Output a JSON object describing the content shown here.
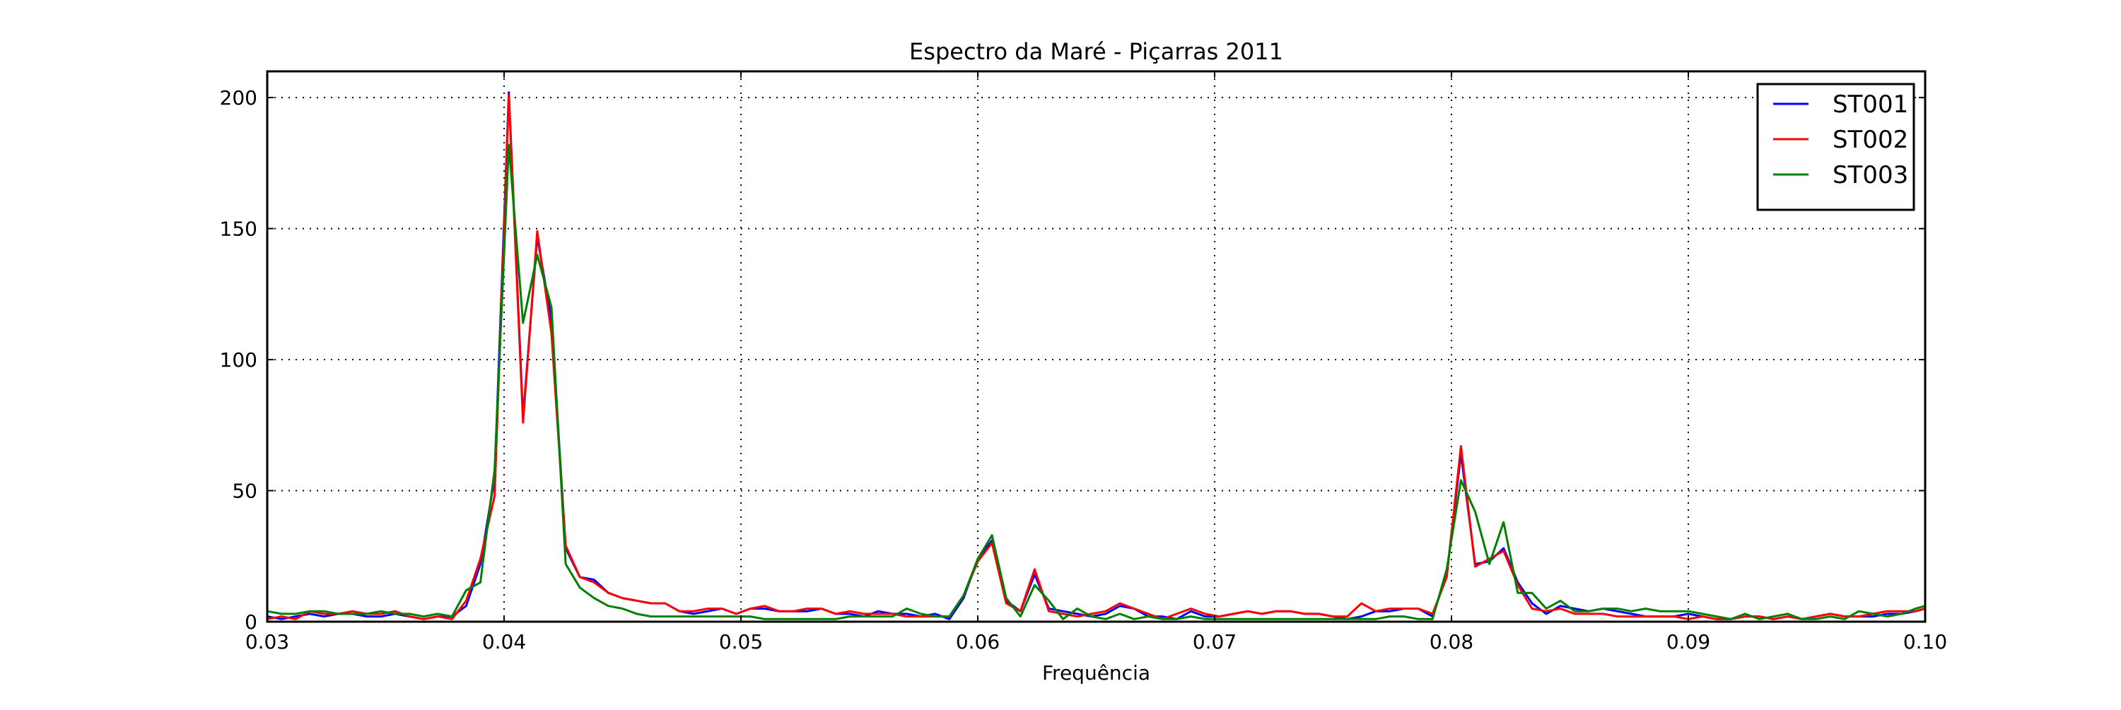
{
  "chart_data": {
    "type": "line",
    "title": "Espectro da Maré - Piçarras 2011",
    "xlabel": "Frequência",
    "ylabel": "",
    "xlim": [
      0.03,
      0.1
    ],
    "ylim": [
      0,
      210
    ],
    "xticks": [
      0.03,
      0.04,
      0.05,
      0.06,
      0.07,
      0.08,
      0.09,
      0.1
    ],
    "xtick_labels": [
      "0.03",
      "0.04",
      "0.05",
      "0.06",
      "0.07",
      "0.08",
      "0.09",
      "0.10"
    ],
    "yticks": [
      0,
      50,
      100,
      150,
      200
    ],
    "ytick_labels": [
      "0",
      "50",
      "100",
      "150",
      "200"
    ],
    "grid": true,
    "legend_position": "top-right",
    "x": [
      0.03,
      0.0306,
      0.0312,
      0.0318,
      0.0324,
      0.033,
      0.0336,
      0.0342,
      0.0348,
      0.0354,
      0.036,
      0.0366,
      0.0372,
      0.0378,
      0.0384,
      0.039,
      0.0396,
      0.0402,
      0.0408,
      0.0414,
      0.042,
      0.0426,
      0.0432,
      0.0438,
      0.0444,
      0.045,
      0.0456,
      0.0462,
      0.0468,
      0.0474,
      0.048,
      0.0486,
      0.0492,
      0.0498,
      0.0504,
      0.051,
      0.0516,
      0.0522,
      0.0528,
      0.0534,
      0.054,
      0.0546,
      0.0552,
      0.0558,
      0.0564,
      0.057,
      0.0576,
      0.0582,
      0.0588,
      0.0594,
      0.06,
      0.0606,
      0.0612,
      0.0618,
      0.0624,
      0.063,
      0.0636,
      0.0642,
      0.0648,
      0.0654,
      0.066,
      0.0666,
      0.0672,
      0.0678,
      0.0684,
      0.069,
      0.0696,
      0.0702,
      0.0708,
      0.0714,
      0.072,
      0.0726,
      0.0732,
      0.0738,
      0.0744,
      0.075,
      0.0756,
      0.0762,
      0.0768,
      0.0774,
      0.078,
      0.0786,
      0.0792,
      0.0798,
      0.0804,
      0.081,
      0.0816,
      0.0822,
      0.0828,
      0.0834,
      0.084,
      0.0846,
      0.0852,
      0.0858,
      0.0864,
      0.087,
      0.0876,
      0.0882,
      0.0888,
      0.0894,
      0.09,
      0.0906,
      0.0912,
      0.0918,
      0.0924,
      0.093,
      0.0936,
      0.0942,
      0.0948,
      0.0954,
      0.096,
      0.0966,
      0.0972,
      0.0978,
      0.0984,
      0.099,
      0.0996,
      0.1
    ],
    "series": [
      {
        "name": "ST001",
        "color": "#0000ff",
        "values": [
          2,
          1,
          2,
          3,
          2,
          3,
          3,
          2,
          2,
          3,
          2,
          1,
          2,
          2,
          6,
          22,
          55,
          202,
          78,
          147,
          115,
          28,
          17,
          16,
          11,
          9,
          8,
          7,
          7,
          4,
          3,
          4,
          5,
          3,
          5,
          5,
          4,
          4,
          4,
          5,
          3,
          3,
          2,
          4,
          3,
          3,
          2,
          3,
          1,
          9,
          24,
          31,
          8,
          4,
          18,
          5,
          4,
          3,
          2,
          3,
          6,
          5,
          2,
          2,
          1,
          4,
          2,
          2,
          3,
          4,
          3,
          4,
          4,
          3,
          3,
          2,
          1,
          2,
          4,
          4,
          5,
          5,
          2,
          18,
          64,
          22,
          23,
          28,
          15,
          7,
          3,
          6,
          5,
          4,
          5,
          4,
          3,
          2,
          2,
          2,
          3,
          2,
          1,
          1,
          2,
          2,
          1,
          2,
          1,
          2,
          3,
          2,
          2,
          2,
          3,
          3,
          4,
          5
        ]
      },
      {
        "name": "ST002",
        "color": "#ff0000",
        "values": [
          1,
          2,
          1,
          4,
          3,
          3,
          4,
          3,
          3,
          4,
          2,
          1,
          2,
          1,
          8,
          24,
          48,
          201,
          76,
          149,
          110,
          29,
          17,
          15,
          11,
          9,
          8,
          7,
          7,
          4,
          4,
          5,
          5,
          3,
          5,
          6,
          4,
          4,
          5,
          5,
          3,
          4,
          3,
          3,
          3,
          2,
          2,
          2,
          2,
          10,
          23,
          30,
          7,
          4,
          20,
          4,
          3,
          2,
          3,
          4,
          7,
          5,
          3,
          1,
          3,
          5,
          3,
          2,
          3,
          4,
          3,
          4,
          4,
          3,
          3,
          2,
          2,
          7,
          4,
          5,
          5,
          5,
          3,
          17,
          67,
          21,
          24,
          27,
          14,
          5,
          4,
          5,
          3,
          3,
          3,
          2,
          2,
          2,
          2,
          2,
          1,
          2,
          1,
          1,
          2,
          2,
          1,
          2,
          1,
          2,
          3,
          2,
          2,
          3,
          4,
          4,
          4,
          5
        ]
      },
      {
        "name": "ST003",
        "color": "#008000",
        "values": [
          4,
          3,
          3,
          4,
          4,
          3,
          3,
          3,
          4,
          3,
          3,
          2,
          3,
          2,
          12,
          15,
          58,
          182,
          114,
          140,
          120,
          22,
          13,
          9,
          6,
          5,
          3,
          2,
          2,
          2,
          2,
          2,
          2,
          2,
          2,
          1,
          1,
          1,
          1,
          1,
          1,
          2,
          2,
          2,
          2,
          5,
          3,
          2,
          2,
          10,
          24,
          33,
          9,
          2,
          14,
          8,
          1,
          5,
          2,
          1,
          3,
          1,
          2,
          1,
          1,
          2,
          1,
          1,
          1,
          1,
          1,
          1,
          1,
          1,
          1,
          1,
          1,
          1,
          1,
          2,
          2,
          1,
          1,
          20,
          54,
          42,
          22,
          38,
          11,
          11,
          5,
          8,
          4,
          4,
          5,
          5,
          4,
          5,
          4,
          4,
          4,
          3,
          2,
          1,
          3,
          1,
          2,
          3,
          1,
          1,
          2,
          1,
          4,
          3,
          2,
          3,
          5,
          6
        ]
      }
    ]
  }
}
